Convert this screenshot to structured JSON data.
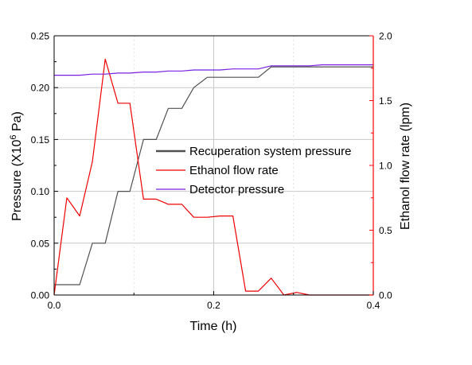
{
  "chart_data": {
    "type": "line",
    "xlabel": "Time (h)",
    "ylabel": {
      "prefix": "Pressure (X10",
      "superscript": "6",
      "suffix": " Pa)"
    },
    "y2label": "Ethanol flow rate (lpm)",
    "xlim": [
      0.0,
      0.4
    ],
    "ylim": [
      0.0,
      0.25
    ],
    "y2lim": [
      0.0,
      2.0
    ],
    "xticks": [
      0.0,
      0.2,
      0.4
    ],
    "xtick_labels": [
      "0.0",
      "0.2",
      "0.4"
    ],
    "yticks": [
      0.0,
      0.05,
      0.1,
      0.15,
      0.2,
      0.25
    ],
    "ytick_labels": [
      "0.00",
      "0.05",
      "0.10",
      "0.15",
      "0.20",
      "0.25"
    ],
    "y2ticks": [
      0.0,
      0.5,
      1.0,
      1.5,
      2.0
    ],
    "y2tick_labels": [
      "0.0",
      "0.5",
      "1.0",
      "1.5",
      "2.0"
    ],
    "grid": true,
    "legend_position": "right-middle",
    "series": [
      {
        "name": "Recuperation system pressure",
        "axis": "left",
        "color": "#505050",
        "x": [
          0.0,
          0.032,
          0.048,
          0.064,
          0.08,
          0.095,
          0.112,
          0.128,
          0.143,
          0.16,
          0.175,
          0.192,
          0.208,
          0.224,
          0.24,
          0.256,
          0.272,
          0.288,
          0.304,
          0.32,
          0.336,
          0.352,
          0.368,
          0.384,
          0.4
        ],
        "y": [
          0.01,
          0.01,
          0.05,
          0.05,
          0.1,
          0.1,
          0.15,
          0.15,
          0.18,
          0.18,
          0.2,
          0.21,
          0.21,
          0.21,
          0.21,
          0.21,
          0.22,
          0.22,
          0.22,
          0.22,
          0.22,
          0.22,
          0.22,
          0.22,
          0.22
        ]
      },
      {
        "name": "Ethanol flow rate",
        "axis": "right",
        "color": "#ee0000",
        "x": [
          0.0,
          0.016,
          0.032,
          0.048,
          0.064,
          0.08,
          0.095,
          0.112,
          0.128,
          0.143,
          0.16,
          0.175,
          0.192,
          0.208,
          0.224,
          0.24,
          0.256,
          0.272,
          0.288,
          0.304,
          0.32,
          0.336,
          0.352,
          0.368,
          0.384,
          0.4
        ],
        "y": [
          0.0,
          0.75,
          0.61,
          1.03,
          1.82,
          1.48,
          1.48,
          0.74,
          0.74,
          0.7,
          0.7,
          0.6,
          0.6,
          0.61,
          0.61,
          0.03,
          0.03,
          0.13,
          0.0,
          0.02,
          0.0,
          0.0,
          0.0,
          0.0,
          0.0,
          0.0
        ]
      },
      {
        "name": "Detector pressure",
        "axis": "left",
        "color": "#7a1fe0",
        "x": [
          0.0,
          0.032,
          0.048,
          0.064,
          0.08,
          0.095,
          0.112,
          0.128,
          0.143,
          0.16,
          0.175,
          0.192,
          0.208,
          0.224,
          0.24,
          0.256,
          0.272,
          0.288,
          0.304,
          0.32,
          0.336,
          0.352,
          0.368,
          0.384,
          0.4
        ],
        "y": [
          0.212,
          0.212,
          0.213,
          0.213,
          0.214,
          0.214,
          0.215,
          0.215,
          0.216,
          0.216,
          0.217,
          0.217,
          0.217,
          0.218,
          0.218,
          0.218,
          0.221,
          0.221,
          0.221,
          0.221,
          0.222,
          0.222,
          0.222,
          0.222,
          0.222
        ]
      }
    ]
  }
}
